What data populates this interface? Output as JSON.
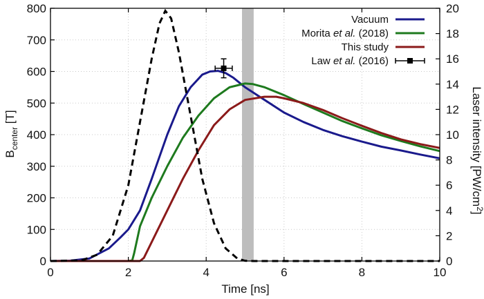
{
  "chart_data": {
    "type": "line",
    "xlabel": "Time [ns]",
    "ylabel_left": {
      "main": "B",
      "sub": "center",
      "unit": " [T]"
    },
    "ylabel_right": {
      "main": "Laser intensity [PW/cm",
      "sup": "2",
      "close": "]"
    },
    "xlim": [
      0,
      10
    ],
    "ylim_left": [
      0,
      800
    ],
    "ylim_right": [
      0,
      20
    ],
    "x_ticks": [
      0,
      2,
      4,
      6,
      8,
      10
    ],
    "y_left_ticks": [
      0,
      100,
      200,
      300,
      400,
      500,
      600,
      700,
      800
    ],
    "y_right_ticks": [
      0,
      2,
      4,
      6,
      8,
      10,
      12,
      14,
      16,
      18,
      20
    ],
    "grid": "dotted",
    "legend_position": "top-right",
    "shaded_band": {
      "x_from": 4.92,
      "x_to": 5.22,
      "color": "#bdbdbd"
    },
    "series": [
      {
        "name": "Vacuum",
        "color": "#1a1a8c",
        "style": "solid",
        "x": [
          0,
          0.5,
          1.0,
          1.5,
          1.8,
          2.0,
          2.3,
          2.6,
          3.0,
          3.3,
          3.6,
          3.9,
          4.1,
          4.3,
          4.5,
          4.7,
          5.0,
          5.5,
          6.0,
          6.5,
          7.0,
          7.5,
          8.0,
          8.5,
          9.0,
          9.5,
          10.0
        ],
        "y": [
          0,
          1,
          8,
          40,
          75,
          100,
          160,
          260,
          400,
          490,
          550,
          590,
          600,
          602,
          595,
          580,
          550,
          510,
          470,
          440,
          415,
          395,
          378,
          362,
          350,
          337,
          325
        ]
      },
      {
        "name": "Morita et al. (2018)",
        "legend_parts": [
          {
            "text": "Morita ",
            "italic": false
          },
          {
            "text": "et al.",
            "italic": true
          },
          {
            "text": " (2018)",
            "italic": false
          }
        ],
        "color": "#1e7a1e",
        "style": "solid",
        "x": [
          0,
          1.0,
          2.0,
          2.1,
          2.15,
          2.3,
          2.6,
          3.0,
          3.4,
          3.8,
          4.2,
          4.6,
          5.0,
          5.2,
          5.5,
          6.0,
          6.5,
          7.0,
          7.5,
          8.0,
          8.5,
          9.0,
          9.5,
          10.0
        ],
        "y": [
          0,
          0,
          0,
          2,
          25,
          110,
          200,
          300,
          390,
          460,
          515,
          550,
          562,
          560,
          550,
          525,
          497,
          470,
          443,
          420,
          398,
          380,
          363,
          348
        ]
      },
      {
        "name": "This study",
        "color": "#8b1a1a",
        "style": "solid",
        "x": [
          0,
          1.0,
          2.0,
          2.3,
          2.4,
          2.6,
          3.0,
          3.4,
          3.8,
          4.2,
          4.6,
          5.0,
          5.5,
          5.8,
          6.0,
          6.5,
          7.0,
          7.5,
          8.0,
          8.5,
          9.0,
          9.5,
          10.0
        ],
        "y": [
          0,
          0,
          0,
          0,
          10,
          60,
          160,
          260,
          350,
          430,
          480,
          510,
          520,
          520,
          515,
          500,
          478,
          452,
          428,
          405,
          385,
          370,
          358
        ]
      },
      {
        "name": "Laser intensity",
        "axis": "right",
        "color": "#000000",
        "style": "dashed",
        "x": [
          0,
          0.8,
          1.2,
          1.6,
          2.0,
          2.3,
          2.6,
          2.8,
          2.95,
          3.1,
          3.3,
          3.6,
          3.9,
          4.2,
          4.5,
          4.8,
          5.0,
          5.2,
          6.0,
          7.0,
          8.0,
          9.0,
          10.0
        ],
        "y": [
          0,
          0.05,
          0.5,
          2.0,
          6.0,
          11.0,
          16.0,
          18.8,
          19.8,
          19.2,
          16.5,
          11.5,
          6.5,
          3.0,
          1.0,
          0.2,
          0.02,
          0,
          0,
          0,
          0,
          0,
          0
        ]
      },
      {
        "name": "Law et al. (2016)",
        "legend_parts": [
          {
            "text": "Law ",
            "italic": false
          },
          {
            "text": "et al.",
            "italic": true
          },
          {
            "text": " (2016)",
            "italic": false
          }
        ],
        "color": "#000000",
        "style": "errorbar-point",
        "x": [
          4.45
        ],
        "y": [
          610
        ],
        "x_err": [
          0.22
        ],
        "y_err": [
          30
        ]
      }
    ]
  }
}
